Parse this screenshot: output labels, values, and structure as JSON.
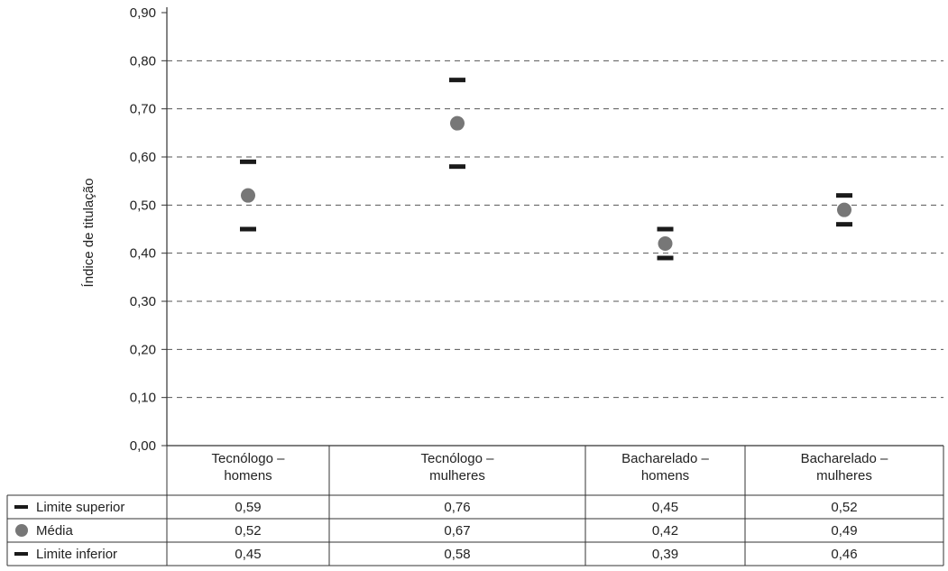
{
  "chart_data": {
    "type": "scatter",
    "ylabel": "Índice de titulação",
    "ylim": [
      0,
      0.9
    ],
    "yticks": [
      "0,00",
      "0,10",
      "0,20",
      "0,30",
      "0,40",
      "0,50",
      "0,60",
      "0,70",
      "0,80",
      "0,90"
    ],
    "grid": "horizontal-dashed",
    "categories": [
      [
        "Tecnólogo –",
        "homens"
      ],
      [
        "Tecnólogo –",
        "mulheres"
      ],
      [
        "Bacharelado –",
        "homens"
      ],
      [
        "Bacharelado –",
        "mulheres"
      ]
    ],
    "series": [
      {
        "name": "Limite superior",
        "marker": "dash",
        "values": [
          0.59,
          0.76,
          0.45,
          0.52
        ],
        "labels": [
          "0,59",
          "0,76",
          "0,45",
          "0,52"
        ]
      },
      {
        "name": "Média",
        "marker": "circle",
        "values": [
          0.52,
          0.67,
          0.42,
          0.49
        ],
        "labels": [
          "0,52",
          "0,67",
          "0,42",
          "0,49"
        ]
      },
      {
        "name": "Limite inferior",
        "marker": "dash",
        "values": [
          0.45,
          0.58,
          0.39,
          0.46
        ],
        "labels": [
          "0,45",
          "0,58",
          "0,39",
          "0,46"
        ]
      }
    ],
    "colors": {
      "dash": "#1a1a1a",
      "circle": "#777777",
      "axis": "#333333",
      "grid": "#555555"
    }
  }
}
